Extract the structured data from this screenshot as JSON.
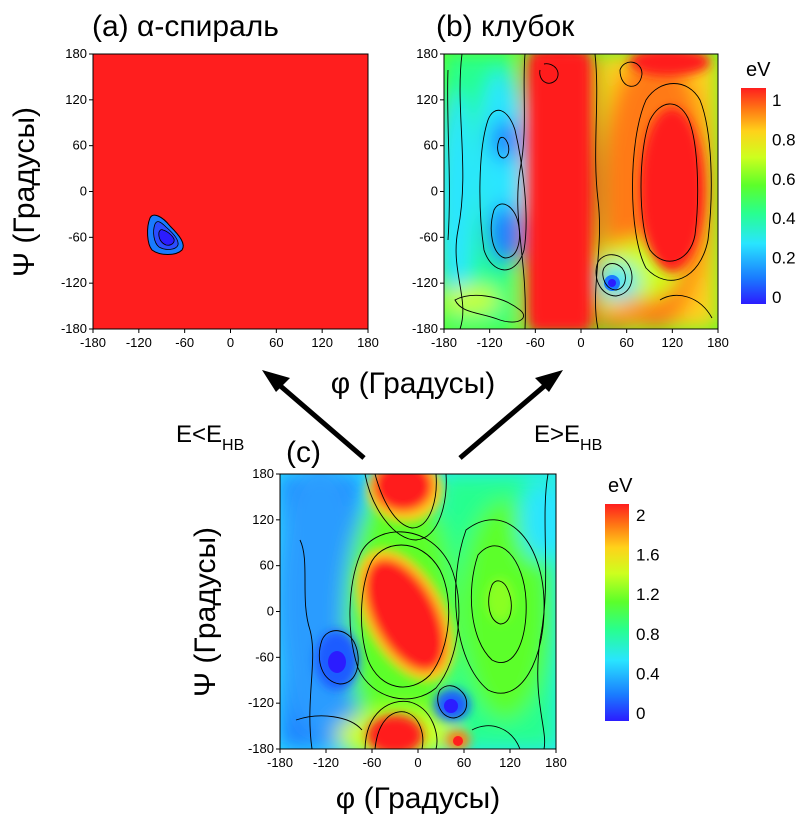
{
  "chart_data": [
    {
      "type": "heatmap",
      "panel": "a",
      "title": "(a) α-спираль",
      "xlabel": "",
      "ylabel": "Ψ (Градусы)",
      "xlim": [
        -180,
        180
      ],
      "ylim": [
        -180,
        180
      ],
      "xticks": [
        "-180",
        "-120",
        "-60",
        "0",
        "60",
        "120",
        "180"
      ],
      "yticks": [
        "180",
        "120",
        "60",
        "0",
        "-60",
        "-120",
        "-180"
      ],
      "colorbar": null,
      "background_value": 1,
      "features": [
        {
          "kind": "minimum",
          "phi": -85,
          "psi": -60,
          "value": 0
        }
      ]
    },
    {
      "type": "heatmap",
      "panel": "b",
      "title": "(b) клубок",
      "xlabel": "φ (Градусы)",
      "ylabel": "",
      "xlim": [
        -180,
        180
      ],
      "ylim": [
        -180,
        180
      ],
      "xticks": [
        "-180",
        "-120",
        "-60",
        "0",
        "60",
        "120",
        "180"
      ],
      "yticks": [
        "180",
        "120",
        "60",
        "0",
        "-60",
        "-120",
        "-180"
      ],
      "colorbar": {
        "title": "eV",
        "ticks": [
          "1",
          "0.8",
          "0.6",
          "0.4",
          "0.2",
          "0"
        ],
        "range": [
          0,
          1
        ]
      },
      "features": [
        {
          "kind": "minimum",
          "phi": -85,
          "psi": -55,
          "value": 0.2
        },
        {
          "kind": "minimum",
          "phi": 45,
          "psi": -120,
          "value": 0.1
        },
        {
          "kind": "maximum",
          "phi": 120,
          "psi": 10,
          "value": 1
        },
        {
          "kind": "maximum",
          "phi": 20,
          "psi": 0,
          "value": 1
        }
      ]
    },
    {
      "type": "heatmap",
      "panel": "c",
      "title": "(c)",
      "xlabel": "φ (Градусы)",
      "ylabel": "Ψ (Градусы)",
      "xlim": [
        -180,
        180
      ],
      "ylim": [
        -180,
        180
      ],
      "xticks": [
        "-180",
        "-120",
        "-60",
        "0",
        "60",
        "120",
        "180"
      ],
      "yticks": [
        "180",
        "120",
        "60",
        "0",
        "-60",
        "-120",
        "-180"
      ],
      "colorbar": {
        "title": "eV",
        "ticks": [
          "2",
          "1.6",
          "1.2",
          "0.8",
          "0.4",
          "0"
        ],
        "range": [
          0,
          2
        ]
      },
      "features": [
        {
          "kind": "minimum",
          "phi": -85,
          "psi": -65,
          "value": 0.1
        },
        {
          "kind": "minimum",
          "phi": 40,
          "psi": -120,
          "value": 0.1
        },
        {
          "kind": "maximum",
          "phi": -30,
          "psi": 0,
          "value": 2
        },
        {
          "kind": "maximum",
          "phi": -30,
          "psi": 160,
          "value": 2
        },
        {
          "kind": "maximum",
          "phi": -30,
          "psi": -165,
          "value": 2
        },
        {
          "kind": "maximum",
          "phi": 50,
          "psi": -165,
          "value": 2
        },
        {
          "kind": "local",
          "phi": 115,
          "psi": 20,
          "value": 1.1
        }
      ]
    }
  ],
  "annotations": {
    "left_arrow_main": "E<E",
    "left_arrow_sub": "HB",
    "right_arrow_main": "E>E",
    "right_arrow_sub": "HB"
  },
  "colors": {
    "scale": [
      "#2b1cff",
      "#1a7bff",
      "#29e5ff",
      "#28ff8f",
      "#5cff2a",
      "#cdff1e",
      "#ffd21a",
      "#ff7a14",
      "#ff1e1e"
    ]
  }
}
